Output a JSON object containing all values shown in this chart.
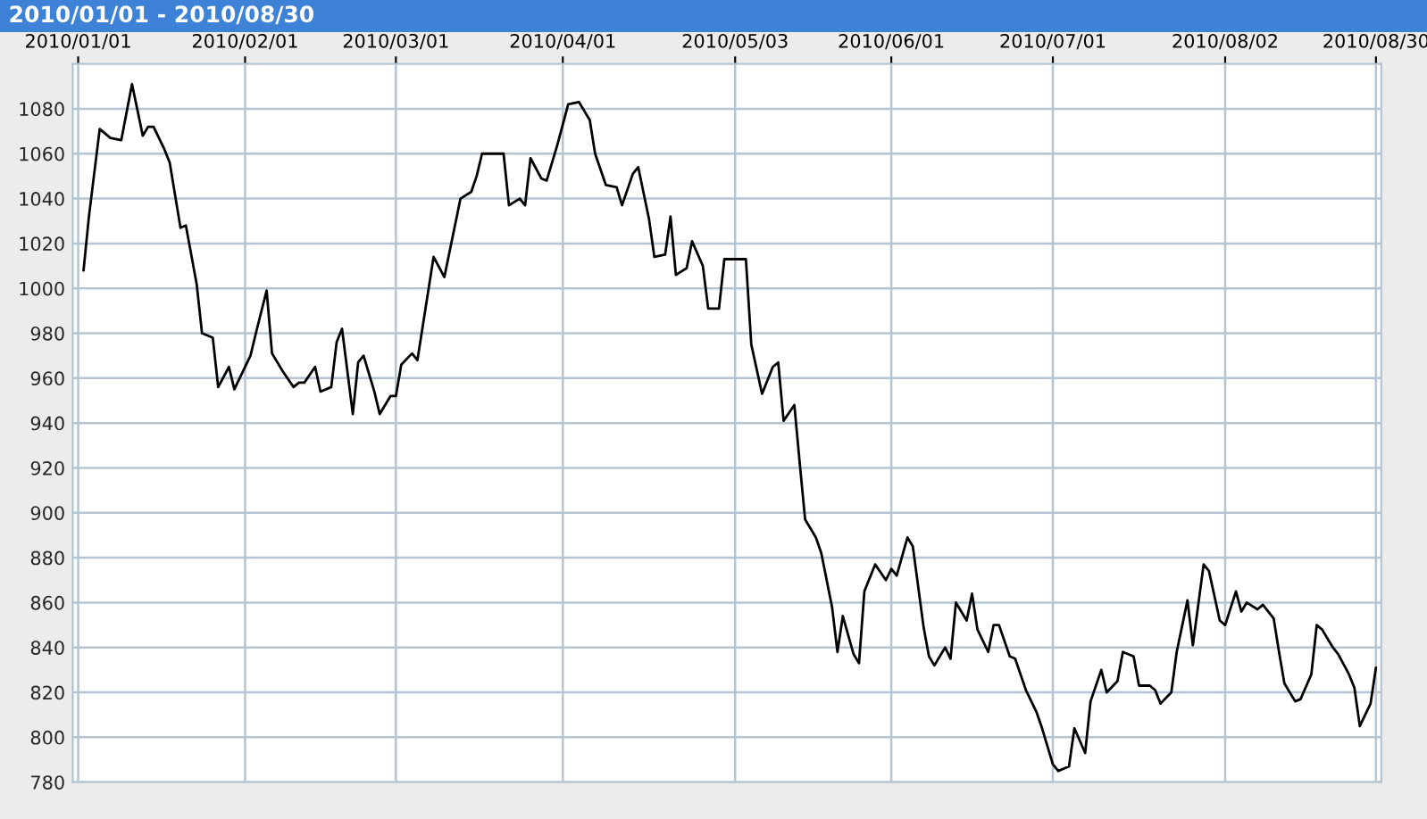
{
  "chart_data": {
    "type": "line",
    "title": "2010/01/01 - 2010/08/30",
    "xlim": [
      "2009-12-31",
      "2010-08-31"
    ],
    "xticks": [
      {
        "value": "2010-01-01",
        "label": "2010/01/01"
      },
      {
        "value": "2010-02-01",
        "label": "2010/02/01"
      },
      {
        "value": "2010-03-01",
        "label": "2010/03/01"
      },
      {
        "value": "2010-04-01",
        "label": "2010/04/01"
      },
      {
        "value": "2010-05-03",
        "label": "2010/05/03"
      },
      {
        "value": "2010-06-01",
        "label": "2010/06/01"
      },
      {
        "value": "2010-07-01",
        "label": "2010/07/01"
      },
      {
        "value": "2010-08-02",
        "label": "2010/08/02"
      },
      {
        "value": "2010-08-30",
        "label": "2010/08/30"
      }
    ],
    "ylim": [
      780,
      1100
    ],
    "yticks": [
      780,
      800,
      820,
      840,
      860,
      880,
      900,
      920,
      940,
      960,
      980,
      1000,
      1020,
      1040,
      1060,
      1080
    ],
    "grid": true,
    "line_style": "solid",
    "marker": "none",
    "x": [
      "2010-01-02",
      "2010-01-03",
      "2010-01-05",
      "2010-01-07",
      "2010-01-09",
      "2010-01-11",
      "2010-01-13",
      "2010-01-14",
      "2010-01-15",
      "2010-01-17",
      "2010-01-18",
      "2010-01-20",
      "2010-01-21",
      "2010-01-23",
      "2010-01-24",
      "2010-01-26",
      "2010-01-27",
      "2010-01-29",
      "2010-01-30",
      "2010-02-02",
      "2010-02-03",
      "2010-02-05",
      "2010-02-06",
      "2010-02-08",
      "2010-02-10",
      "2010-02-11",
      "2010-02-12",
      "2010-02-14",
      "2010-02-15",
      "2010-02-17",
      "2010-02-18",
      "2010-02-19",
      "2010-02-21",
      "2010-02-22",
      "2010-02-23",
      "2010-02-25",
      "2010-02-26",
      "2010-02-28",
      "2010-03-01",
      "2010-03-02",
      "2010-03-04",
      "2010-03-05",
      "2010-03-08",
      "2010-03-10",
      "2010-03-13",
      "2010-03-15",
      "2010-03-16",
      "2010-03-17",
      "2010-03-21",
      "2010-03-22",
      "2010-03-24",
      "2010-03-25",
      "2010-03-26",
      "2010-03-28",
      "2010-03-29",
      "2010-03-31",
      "2010-04-02",
      "2010-04-04",
      "2010-04-06",
      "2010-04-07",
      "2010-04-09",
      "2010-04-11",
      "2010-04-12",
      "2010-04-14",
      "2010-04-15",
      "2010-04-17",
      "2010-04-18",
      "2010-04-20",
      "2010-04-21",
      "2010-04-22",
      "2010-04-24",
      "2010-04-25",
      "2010-04-27",
      "2010-04-28",
      "2010-04-30",
      "2010-05-01",
      "2010-05-05",
      "2010-05-06",
      "2010-05-08",
      "2010-05-10",
      "2010-05-11",
      "2010-05-12",
      "2010-05-14",
      "2010-05-15",
      "2010-05-16",
      "2010-05-18",
      "2010-05-19",
      "2010-05-21",
      "2010-05-22",
      "2010-05-23",
      "2010-05-25",
      "2010-05-26",
      "2010-05-27",
      "2010-05-29",
      "2010-05-31",
      "2010-06-01",
      "2010-06-02",
      "2010-06-04",
      "2010-06-05",
      "2010-06-07",
      "2010-06-08",
      "2010-06-09",
      "2010-06-11",
      "2010-06-12",
      "2010-06-13",
      "2010-06-15",
      "2010-06-16",
      "2010-06-17",
      "2010-06-19",
      "2010-06-20",
      "2010-06-21",
      "2010-06-23",
      "2010-06-24",
      "2010-06-26",
      "2010-06-28",
      "2010-06-29",
      "2010-07-01",
      "2010-07-02",
      "2010-07-04",
      "2010-07-05",
      "2010-07-07",
      "2010-07-08",
      "2010-07-10",
      "2010-07-11",
      "2010-07-13",
      "2010-07-14",
      "2010-07-16",
      "2010-07-17",
      "2010-07-19",
      "2010-07-20",
      "2010-07-21",
      "2010-07-23",
      "2010-07-24",
      "2010-07-26",
      "2010-07-27",
      "2010-07-29",
      "2010-07-30",
      "2010-08-01",
      "2010-08-02",
      "2010-08-04",
      "2010-08-05",
      "2010-08-06",
      "2010-08-08",
      "2010-08-09",
      "2010-08-11",
      "2010-08-12",
      "2010-08-13",
      "2010-08-15",
      "2010-08-16",
      "2010-08-18",
      "2010-08-19",
      "2010-08-20",
      "2010-08-22",
      "2010-08-23",
      "2010-08-25",
      "2010-08-26",
      "2010-08-27",
      "2010-08-29",
      "2010-08-30"
    ],
    "values": [
      1008,
      1032,
      1071,
      1067,
      1066,
      1091,
      1068,
      1072,
      1072,
      1062,
      1056,
      1027,
      1028,
      1002,
      980,
      978,
      956,
      965,
      955,
      970,
      980,
      999,
      971,
      963,
      956,
      958,
      958,
      965,
      954,
      956,
      976,
      982,
      944,
      967,
      970,
      954,
      944,
      952,
      952,
      966,
      971,
      968,
      1014,
      1005,
      1040,
      1043,
      1050,
      1060,
      1060,
      1037,
      1040,
      1037,
      1058,
      1049,
      1048,
      1064,
      1082,
      1083,
      1075,
      1060,
      1046,
      1045,
      1037,
      1051,
      1054,
      1031,
      1014,
      1015,
      1032,
      1006,
      1009,
      1021,
      1010,
      991,
      991,
      1013,
      1013,
      975,
      953,
      965,
      967,
      941,
      948,
      922,
      897,
      889,
      882,
      858,
      838,
      854,
      837,
      833,
      865,
      877,
      870,
      875,
      872,
      889,
      885,
      849,
      836,
      832,
      840,
      835,
      860,
      852,
      864,
      848,
      838,
      850,
      850,
      836,
      835,
      821,
      811,
      804,
      788,
      785,
      787,
      804,
      793,
      816,
      830,
      820,
      825,
      838,
      836,
      823,
      823,
      821,
      815,
      820,
      838,
      861,
      841,
      877,
      874,
      852,
      850,
      865,
      856,
      860,
      857,
      859,
      853,
      838,
      824,
      816,
      817,
      828,
      850,
      848,
      840,
      837,
      828,
      822,
      805,
      815,
      831
    ],
    "color": "#000000"
  }
}
